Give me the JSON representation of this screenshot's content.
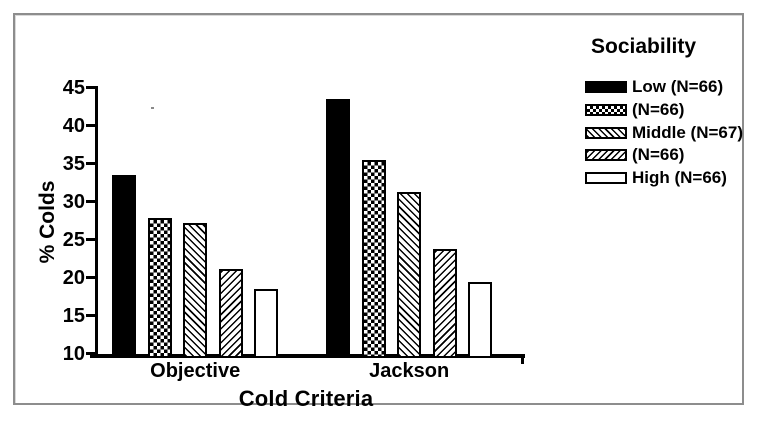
{
  "chart_data": {
    "type": "bar",
    "title": "",
    "xlabel": "Cold Criteria",
    "ylabel": "% Colds",
    "categories": [
      "Objective",
      "Jackson"
    ],
    "legend_title": "Sociability",
    "legend_position": "right",
    "grid": false,
    "ylim": [
      10,
      45
    ],
    "y_ticks": [
      45,
      40,
      35,
      30,
      25,
      20,
      15,
      10
    ],
    "series": [
      {
        "name": "Low (N=66)",
        "pattern": "solid",
        "values": [
          33.6,
          43.6
        ]
      },
      {
        "name": "(N=66)",
        "pattern": "checker",
        "values": [
          27.9,
          35.5
        ]
      },
      {
        "name": "Middle (N=67)",
        "pattern": "hback",
        "values": [
          27.3,
          31.3
        ]
      },
      {
        "name": "(N=66)",
        "pattern": "hfwd",
        "values": [
          21.2,
          23.8
        ]
      },
      {
        "name": "High (N=66)",
        "pattern": "open",
        "values": [
          18.5,
          19.5
        ]
      }
    ],
    "colors": {
      "ink": "#000000",
      "paper": "#ffffff",
      "frame_border": "#8d8d8d"
    }
  }
}
